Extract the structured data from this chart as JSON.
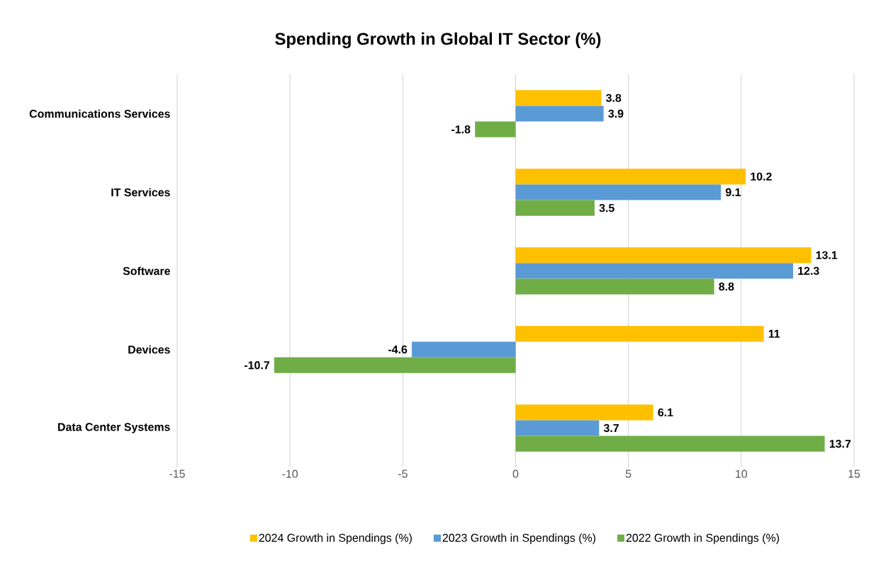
{
  "chart_data": {
    "type": "bar",
    "orientation": "horizontal",
    "title": "Spending Growth in Global IT Sector (%)",
    "categories": [
      "Communications Services",
      "IT Services",
      "Software",
      "Devices",
      "Data Center Systems"
    ],
    "series": [
      {
        "name": "2024 Growth in Spendings (%)",
        "color": "#ffc000",
        "values": [
          3.8,
          10.2,
          13.1,
          11,
          6.1
        ]
      },
      {
        "name": "2023 Growth in Spendings (%)",
        "color": "#5b9bd5",
        "values": [
          3.9,
          9.1,
          12.3,
          -4.6,
          3.7
        ]
      },
      {
        "name": "2022 Growth in Spendings (%)",
        "color": "#70ad47",
        "values": [
          -1.8,
          3.5,
          8.8,
          -10.7,
          13.7
        ]
      }
    ],
    "xlim": [
      -15,
      15
    ],
    "xticks": [
      -15,
      -10,
      -5,
      0,
      5,
      10,
      15
    ],
    "grid": "x",
    "legend": "bottom",
    "data_labels": true
  }
}
